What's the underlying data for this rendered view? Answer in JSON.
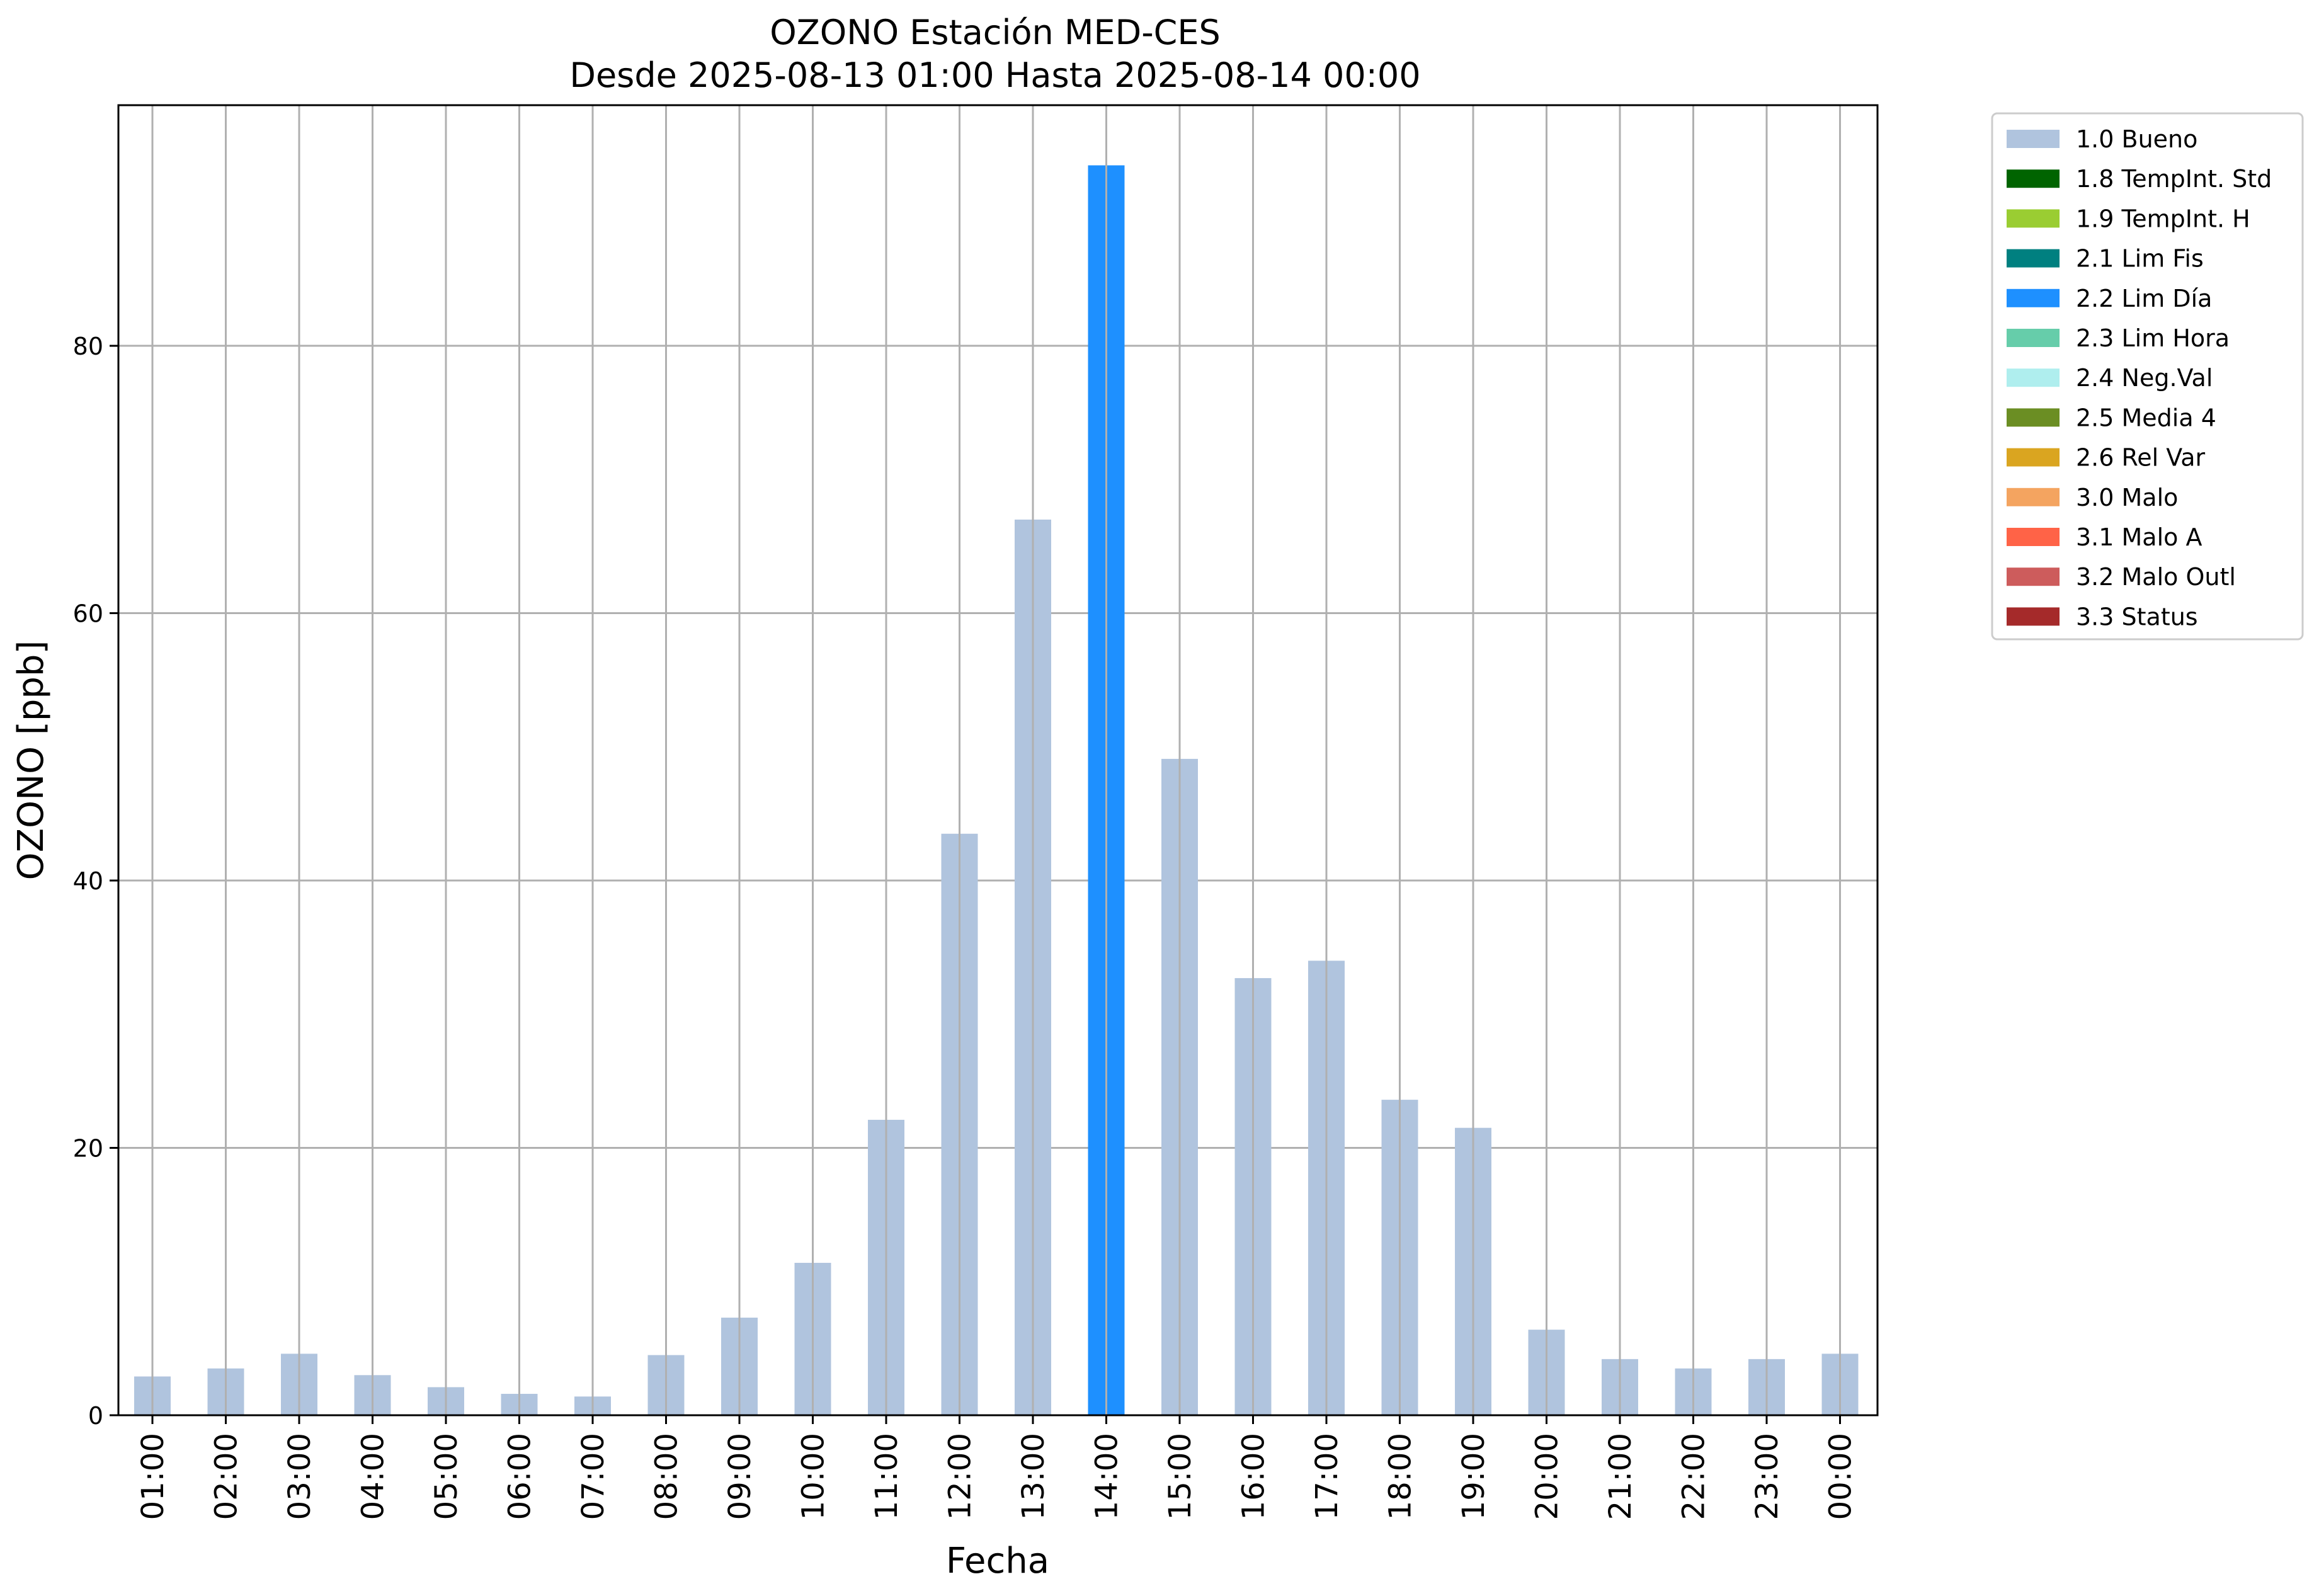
{
  "chart_data": {
    "type": "bar",
    "title": "OZONO Estación MED-CES",
    "subtitle": "Desde 2025-08-13 01:00 Hasta 2025-08-14 00:00",
    "xlabel": "Fecha",
    "ylabel": "OZONO [ppb]",
    "ylim": [
      0,
      98
    ],
    "y_ticks": [
      0,
      20,
      40,
      60,
      80
    ],
    "grid": true,
    "legend_position": "outside-top-right",
    "categories": [
      "01:00",
      "02:00",
      "03:00",
      "04:00",
      "05:00",
      "06:00",
      "07:00",
      "08:00",
      "09:00",
      "10:00",
      "11:00",
      "12:00",
      "13:00",
      "14:00",
      "15:00",
      "16:00",
      "17:00",
      "18:00",
      "19:00",
      "20:00",
      "21:00",
      "22:00",
      "23:00",
      "00:00"
    ],
    "values": [
      2.9,
      3.5,
      4.6,
      3.0,
      2.1,
      1.6,
      1.4,
      4.5,
      7.3,
      11.4,
      22.1,
      43.5,
      67.0,
      93.5,
      49.1,
      32.7,
      34.0,
      23.6,
      21.5,
      6.4,
      4.2,
      3.5,
      4.2,
      4.6
    ],
    "flags": [
      "1.0 Bueno",
      "1.0 Bueno",
      "1.0 Bueno",
      "1.0 Bueno",
      "1.0 Bueno",
      "1.0 Bueno",
      "1.0 Bueno",
      "1.0 Bueno",
      "1.0 Bueno",
      "1.0 Bueno",
      "1.0 Bueno",
      "1.0 Bueno",
      "1.0 Bueno",
      "2.2 Lim Día",
      "1.0 Bueno",
      "1.0 Bueno",
      "1.0 Bueno",
      "1.0 Bueno",
      "1.0 Bueno",
      "1.0 Bueno",
      "1.0 Bueno",
      "1.0 Bueno",
      "1.0 Bueno",
      "1.0 Bueno"
    ],
    "legend": [
      {
        "label": "1.0 Bueno",
        "color": "#b0c4de"
      },
      {
        "label": "1.8 TempInt. Std",
        "color": "#006400"
      },
      {
        "label": "1.9 TempInt. H",
        "color": "#9acd32"
      },
      {
        "label": "2.1 Lim Fis",
        "color": "#008080"
      },
      {
        "label": "2.2 Lim Día",
        "color": "#1e90ff"
      },
      {
        "label": "2.3 Lim Hora",
        "color": "#66cdaa"
      },
      {
        "label": "2.4 Neg.Val",
        "color": "#afeeee"
      },
      {
        "label": "2.5 Media 4",
        "color": "#6b8e23"
      },
      {
        "label": "2.6 Rel Var",
        "color": "#daa520"
      },
      {
        "label": "3.0 Malo",
        "color": "#f4a460"
      },
      {
        "label": "3.1 Malo A",
        "color": "#ff6347"
      },
      {
        "label": "3.2 Malo Outl",
        "color": "#cd5c5c"
      },
      {
        "label": "3.3 Status",
        "color": "#a52a2a"
      }
    ]
  }
}
